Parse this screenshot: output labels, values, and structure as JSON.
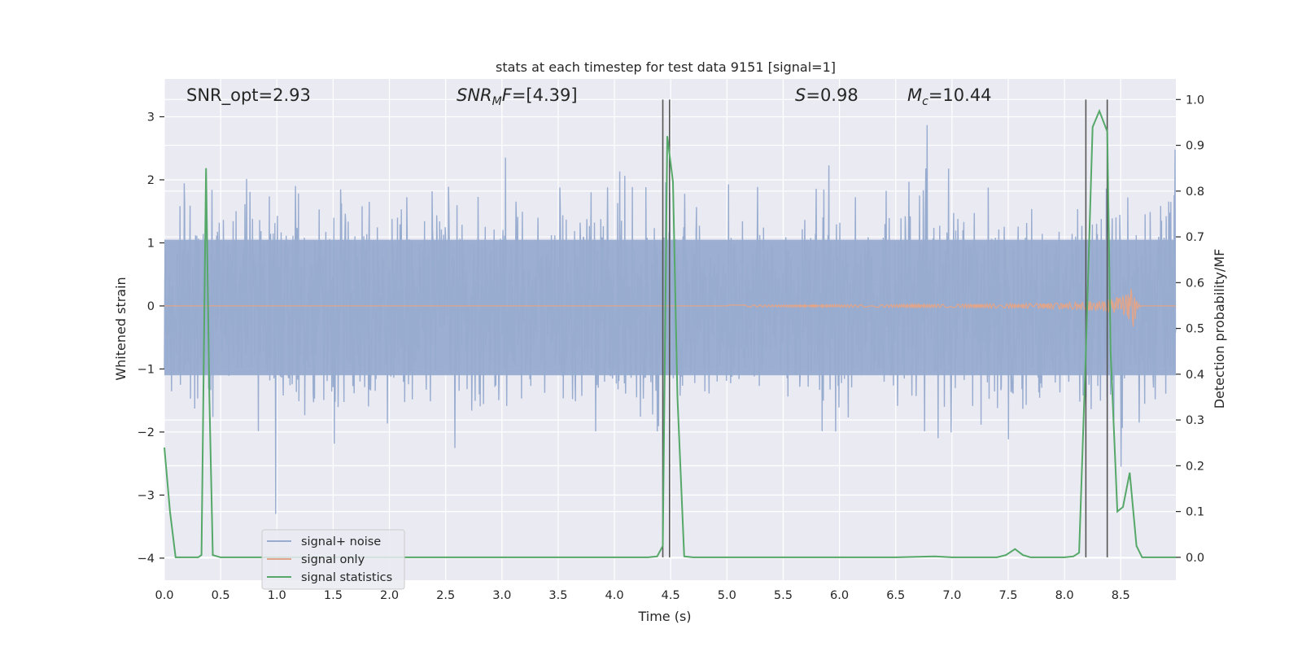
{
  "chart_data": {
    "type": "line",
    "title": "stats at each timestep for test data 9151 [signal=1]",
    "xlabel": "Time (s)",
    "ylabel_left": "Whitened strain",
    "ylabel_right": "Detection probability/MF",
    "xlim": [
      0.0,
      8.99
    ],
    "ylim_left": [
      -4.35,
      3.6
    ],
    "ylim_right": [
      -0.05,
      1.045
    ],
    "x_ticks": [
      "0.0",
      "0.5",
      "1.0",
      "1.5",
      "2.0",
      "2.5",
      "3.0",
      "3.5",
      "4.0",
      "4.5",
      "5.0",
      "5.5",
      "6.0",
      "6.5",
      "7.0",
      "7.5",
      "8.0",
      "8.5"
    ],
    "x_tick_values": [
      0.0,
      0.5,
      1.0,
      1.5,
      2.0,
      2.5,
      3.0,
      3.5,
      4.0,
      4.5,
      5.0,
      5.5,
      6.0,
      6.5,
      7.0,
      7.5,
      8.0,
      8.5
    ],
    "y_ticks_left": [
      "−4",
      "−3",
      "−2",
      "−1",
      "0",
      "1",
      "2",
      "3"
    ],
    "y_tick_values_left": [
      -4,
      -3,
      -2,
      -1,
      0,
      1,
      2,
      3
    ],
    "y_ticks_right": [
      "0.0",
      "0.1",
      "0.2",
      "0.3",
      "0.4",
      "0.5",
      "0.6",
      "0.7",
      "0.8",
      "0.9",
      "1.0"
    ],
    "y_tick_values_right": [
      0.0,
      0.1,
      0.2,
      0.3,
      0.4,
      0.5,
      0.6,
      0.7,
      0.8,
      0.9,
      1.0
    ],
    "grid": true,
    "legend_placement": "lower-left",
    "annotations": {
      "snr_opt": "SNR_opt=2.93",
      "snr_mf_sym": "SNR",
      "snr_mf_sub": "M",
      "snr_mf_sym2": "F",
      "snr_mf_val": "=[4.39]",
      "s_sym": "S",
      "s_val": "=0.98",
      "mc_sym": "M",
      "mc_sub": "c",
      "mc_val": "=10.44"
    },
    "vertical_lines": [
      4.43,
      4.49,
      8.19,
      8.38
    ],
    "series": [
      {
        "name": "signal+ noise",
        "axis": "left",
        "color": "#98acd0",
        "noise_std": 0.75,
        "noise_range": [
          -3.3,
          3.2
        ]
      },
      {
        "name": "signal only",
        "axis": "left",
        "color": "#e0a58a",
        "chirp": {
          "start": 5.0,
          "merger": 8.62,
          "end": 8.99,
          "peak_amplitude": 0.38
        }
      },
      {
        "name": "signal statistics",
        "axis": "right",
        "color": "#55a868",
        "x": [
          0.0,
          0.05,
          0.1,
          0.15,
          0.2,
          0.3,
          0.33,
          0.37,
          0.4,
          0.43,
          0.5,
          0.6,
          1.0,
          2.0,
          3.0,
          4.0,
          4.3,
          4.38,
          4.43,
          4.47,
          4.52,
          4.56,
          4.62,
          4.7,
          5.0,
          6.0,
          6.5,
          6.85,
          7.0,
          7.4,
          7.48,
          7.56,
          7.63,
          7.7,
          8.0,
          8.08,
          8.13,
          8.19,
          8.25,
          8.31,
          8.38,
          8.41,
          8.47,
          8.52,
          8.58,
          8.64,
          8.69,
          8.74,
          8.99
        ],
        "values": [
          0.24,
          0.1,
          0.0,
          0.0,
          0.0,
          0.0,
          0.005,
          0.85,
          0.35,
          0.005,
          0.0,
          0.0,
          0.0,
          0.0,
          0.0,
          0.0,
          0.0,
          0.002,
          0.025,
          0.92,
          0.82,
          0.35,
          0.002,
          0.0,
          0.0,
          0.0,
          0.0,
          0.002,
          0.0,
          0.0,
          0.005,
          0.018,
          0.005,
          0.0,
          0.0,
          0.002,
          0.01,
          0.45,
          0.94,
          0.975,
          0.93,
          0.45,
          0.1,
          0.11,
          0.185,
          0.025,
          0.0,
          0.0,
          0.0
        ]
      }
    ]
  }
}
